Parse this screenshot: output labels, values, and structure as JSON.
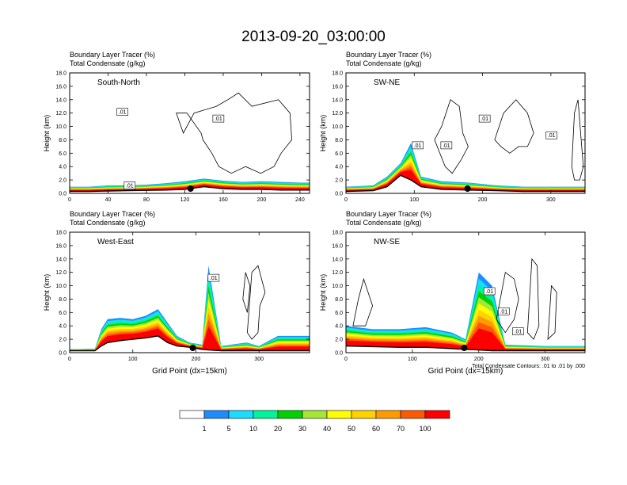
{
  "main_title": "2013-09-20_03:00:00",
  "legend": {
    "levels": [
      "1",
      "5",
      "10",
      "20",
      "30",
      "40",
      "50",
      "60",
      "70",
      "100"
    ],
    "colors": [
      "#ffffff",
      "#1e8cff",
      "#19dcff",
      "#00f59b",
      "#00d200",
      "#a5e636",
      "#ffff00",
      "#ffd200",
      "#ff9b00",
      "#ff5a00",
      "#ff0000"
    ]
  },
  "colors": {
    "tracer_low": "#1e8cff",
    "tracer_mid": "#00d200",
    "tracer_high": "#ff0000",
    "terrain_line": "#000000",
    "cloud_contour": "#000000"
  },
  "chart_data": [
    {
      "type": "area",
      "panel_title": "South-North",
      "subtitle_1": "Boundary Layer Tracer   (%)",
      "subtitle_2": "Total Condensate   (g/kg)",
      "ylabel": "Height (km)",
      "xlabel": "",
      "xlim": [
        0,
        250
      ],
      "ylim": [
        0,
        18
      ],
      "x_ticks": [
        "0",
        "40",
        "80",
        "120",
        "160",
        "200",
        "240"
      ],
      "y_ticks": [
        "0.0",
        "2.0",
        "4.0",
        "6.0",
        "8.0",
        "10.0",
        "12.0",
        "14.0",
        "16.0",
        "18.0"
      ],
      "contour_labels": [
        ".01",
        ".01",
        ".01"
      ],
      "terrain": {
        "x": [
          0,
          20,
          40,
          60,
          80,
          100,
          120,
          140,
          160,
          180,
          200,
          220,
          240,
          250
        ],
        "y": [
          0.3,
          0.3,
          0.35,
          0.4,
          0.45,
          0.5,
          0.6,
          1.0,
          0.7,
          0.6,
          0.6,
          0.5,
          0.5,
          0.5
        ]
      },
      "pbl_top": {
        "x": [
          0,
          20,
          40,
          60,
          80,
          100,
          120,
          140,
          160,
          180,
          200,
          220,
          240,
          250
        ],
        "y": [
          1.0,
          1.0,
          1.2,
          1.2,
          1.3,
          1.5,
          1.8,
          2.2,
          1.9,
          1.7,
          1.8,
          1.7,
          1.6,
          1.6
        ]
      },
      "surface_marker_x": 126
    },
    {
      "type": "area",
      "panel_title": "SW-NE",
      "subtitle_1": "Boundary Layer Tracer   (%)",
      "subtitle_2": "Total Condensate   (g/kg)",
      "ylabel": "Height (km)",
      "xlabel": "",
      "xlim": [
        0,
        350
      ],
      "ylim": [
        0,
        18
      ],
      "x_ticks": [
        "0",
        "100",
        "200",
        "300"
      ],
      "y_ticks": [
        "0.0",
        "2.0",
        "4.0",
        "6.0",
        "8.0",
        "10.0",
        "12.0",
        "14.0",
        "16.0",
        "18.0"
      ],
      "contour_labels": [
        ".01",
        ".01",
        ".01",
        ".01"
      ],
      "terrain": {
        "x": [
          0,
          40,
          60,
          80,
          95,
          110,
          140,
          180,
          220,
          260,
          300,
          350
        ],
        "y": [
          0.3,
          0.4,
          1.0,
          2.7,
          2.0,
          1.0,
          0.6,
          0.5,
          0.4,
          0.3,
          0.3,
          0.3
        ]
      },
      "pbl_top": {
        "x": [
          0,
          40,
          60,
          80,
          95,
          110,
          140,
          180,
          220,
          260,
          300,
          350
        ],
        "y": [
          1.0,
          1.2,
          2.5,
          4.5,
          7.5,
          2.5,
          1.8,
          1.6,
          1.2,
          1.0,
          1.0,
          1.0
        ]
      },
      "surface_marker_x": 178
    },
    {
      "type": "area",
      "panel_title": "West-East",
      "subtitle_1": "Boundary Layer Tracer   (%)",
      "subtitle_2": "Total Condensate   (g/kg)",
      "ylabel": "Height (km)",
      "xlabel": "Grid Point (dx=15km)",
      "xlim": [
        0,
        380
      ],
      "ylim": [
        0,
        18
      ],
      "x_ticks": [
        "0",
        "100",
        "200",
        "300"
      ],
      "y_ticks": [
        "0.0",
        "2.0",
        "4.0",
        "6.0",
        "8.0",
        "10.0",
        "12.0",
        "14.0",
        "16.0",
        "18.0"
      ],
      "contour_labels": [
        ".01"
      ],
      "terrain": {
        "x": [
          0,
          40,
          50,
          60,
          80,
          100,
          120,
          140,
          155,
          170,
          190,
          210,
          220,
          240,
          280,
          300,
          330,
          380
        ],
        "y": [
          0.3,
          0.3,
          1.0,
          1.5,
          1.8,
          2.0,
          2.2,
          2.5,
          1.5,
          1.0,
          0.8,
          0.5,
          0.4,
          0.3,
          0.3,
          0.3,
          0.3,
          0.3
        ]
      },
      "pbl_top": {
        "x": [
          0,
          40,
          50,
          60,
          80,
          100,
          120,
          140,
          155,
          170,
          190,
          210,
          220,
          240,
          280,
          300,
          330,
          380
        ],
        "y": [
          0.5,
          0.6,
          3.5,
          5.0,
          5.2,
          5.0,
          5.5,
          6.5,
          4.5,
          2.5,
          1.5,
          1.2,
          13.0,
          1.0,
          1.5,
          1.0,
          2.5,
          2.5
        ]
      },
      "surface_marker_x": 195
    },
    {
      "type": "area",
      "panel_title": "NW-SE",
      "subtitle_1": "Boundary Layer Tracer   (%)",
      "subtitle_2": "Total Condensate   (g/kg)",
      "ylabel": "Height (km)",
      "xlabel": "Grid Point (dx=15km)",
      "xlim": [
        0,
        360
      ],
      "ylim": [
        0,
        18
      ],
      "x_ticks": [
        "0",
        "100",
        "200",
        "300"
      ],
      "y_ticks": [
        "0.0",
        "2.0",
        "4.0",
        "6.0",
        "8.0",
        "10.0",
        "12.0",
        "14.0",
        "16.0",
        "18.0"
      ],
      "contour_labels": [
        ".01",
        ".01",
        ".01"
      ],
      "footnote": "Total Condensate Contours: .01 to .01 by .000",
      "terrain": {
        "x": [
          0,
          40,
          80,
          120,
          160,
          180,
          200,
          220,
          240,
          300,
          360
        ],
        "y": [
          1.0,
          0.9,
          0.8,
          0.8,
          0.6,
          0.5,
          0.4,
          0.3,
          0.3,
          0.3,
          0.3
        ]
      },
      "pbl_top": {
        "x": [
          0,
          40,
          80,
          120,
          160,
          180,
          200,
          220,
          240,
          300,
          360
        ],
        "y": [
          4.0,
          3.5,
          3.5,
          3.8,
          3.0,
          2.0,
          12.0,
          10.0,
          1.2,
          1.0,
          1.0
        ]
      },
      "surface_marker_x": 178
    }
  ]
}
